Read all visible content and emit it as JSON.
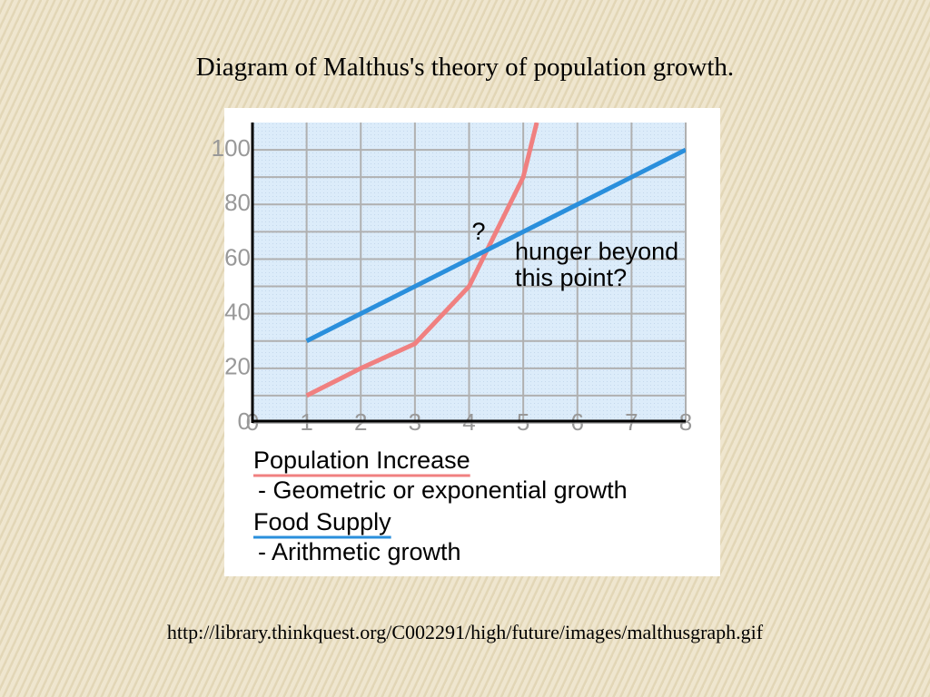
{
  "slide": {
    "title": "Diagram of Malthus's theory of population growth.",
    "caption": "http://library.thinkquest.org/C002291/high/future/images/malthusgraph.gif"
  },
  "chart_data": {
    "type": "line",
    "xlim": [
      0,
      8
    ],
    "xticks": [
      0,
      1,
      2,
      3,
      4,
      5,
      6,
      7,
      8
    ],
    "ylim": [
      0,
      110
    ],
    "yticks": [
      0,
      20,
      40,
      60,
      80,
      100
    ],
    "minor_yticks": [
      10,
      30,
      50,
      70,
      90
    ],
    "grid": true,
    "series": [
      {
        "name": "Population Increase",
        "description": "- Geometric or exponential growth",
        "color": "#f08080",
        "x": [
          1,
          2,
          3,
          4,
          5,
          5.25
        ],
        "values": [
          10,
          20,
          29,
          50,
          90,
          110
        ]
      },
      {
        "name": "Food Supply",
        "description": "- Arithmetic growth",
        "color": "#2a8fdc",
        "x": [
          1,
          2,
          3,
          4,
          5,
          6,
          7,
          8
        ],
        "values": [
          30,
          40,
          50,
          60,
          70,
          80,
          90,
          100
        ]
      }
    ],
    "annotations": [
      "?",
      "hunger beyond",
      "this point?"
    ]
  }
}
